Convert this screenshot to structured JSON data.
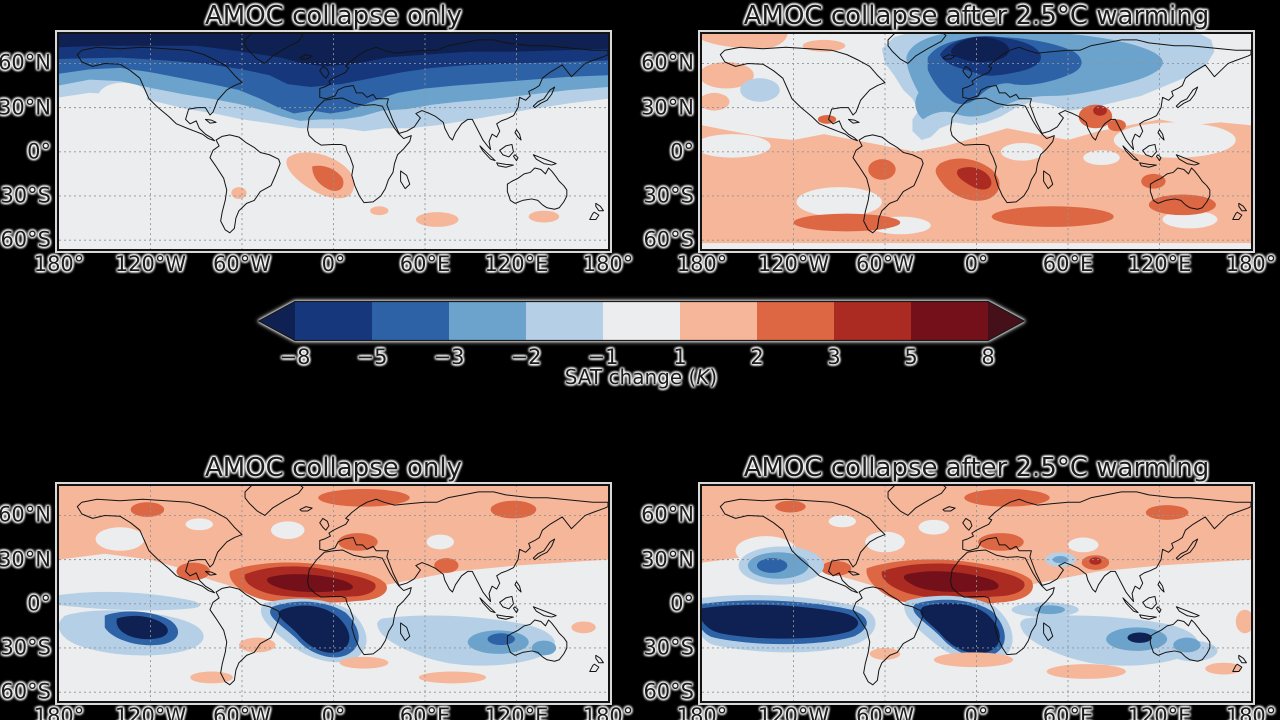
{
  "figure": {
    "background_color": "#000000",
    "text_color": "#1b1b1b",
    "panels": [
      {
        "id": "sat-collapse-only",
        "row": 0,
        "col": 0,
        "title": "AMOC collapse only"
      },
      {
        "id": "sat-collapse-after-warming",
        "row": 0,
        "col": 1,
        "title": "AMOC collapse after 2.5°C warming"
      },
      {
        "id": "lower-collapse-only",
        "row": 1,
        "col": 0,
        "title": "AMOC collapse only"
      },
      {
        "id": "lower-collapse-after-warming",
        "row": 1,
        "col": 1,
        "title": "AMOC collapse after 2.5°C warming"
      }
    ],
    "axis": {
      "x_tick_labels": [
        "180°",
        "120°W",
        "60°W",
        "0°",
        "60°E",
        "120°E",
        "180°"
      ],
      "y_tick_labels": [
        "60°N",
        "30°N",
        "0°",
        "30°S",
        "60°S"
      ]
    },
    "colorbar": {
      "label_prefix": "SAT change (",
      "label_unit": "K",
      "label_suffix": ")",
      "tick_labels": [
        "−8",
        "−5",
        "−3",
        "−2",
        "−1",
        "1",
        "2",
        "3",
        "5",
        "8"
      ],
      "under_color": "#0e2152",
      "over_color": "#451019",
      "segment_colors": [
        "#16377c",
        "#2d63a6",
        "#6ba3cd",
        "#b5d0e6",
        "#ecedee",
        "#f6b69a",
        "#dd6643",
        "#ab2b22",
        "#73101a"
      ]
    }
  },
  "chart_data": {
    "type": "heatmap",
    "subtype": "filled-contour global anomaly maps, 2x2 grid",
    "projection": "equirectangular (lon -180..180, lat ~80N..66S shown)",
    "grid": {
      "lat_lines": [
        60,
        30,
        0,
        -30,
        -60
      ],
      "lon_lines": [
        -120,
        -60,
        0,
        60,
        120
      ],
      "style": "dashed gray"
    },
    "colorbar": {
      "label": "SAT change (K)",
      "boundaries": [
        -8,
        -5,
        -3,
        -2,
        -1,
        1,
        2,
        3,
        5,
        8
      ],
      "colors": [
        "#16377c",
        "#2d63a6",
        "#6ba3cd",
        "#b5d0e6",
        "#ecedee",
        "#f6b69a",
        "#dd6643",
        "#ab2b22",
        "#73101a"
      ],
      "under_color": "#0e2152",
      "over_color": "#451019",
      "extend": "both"
    },
    "panels": [
      {
        "row": 1,
        "col": 1,
        "title": "AMOC collapse only",
        "summary": "Strong cooling (−2 to <−8 K) over the whole Northern Hemisphere, maximum over the Arctic and North Atlantic; mild 1–3 K warming in the South Atlantic off southwest Africa; elsewhere near zero."
      },
      {
        "row": 1,
        "col": 2,
        "title": "AMOC collapse after 2.5°C warming",
        "summary": "Cooling (−2 to <−8 K) confined to the North Atlantic, Nordic Seas, Europe and northern Asia; widespread 1–3 K warming across the tropics and Southern Hemisphere with 3–5 K maximum in the South Atlantic and warm spots over India."
      },
      {
        "row": 2,
        "col": 1,
        "title": "AMOC collapse only",
        "summary": "Positive anomalies (1–5) across most of the Northern Hemisphere with an intense positive band (5 to >8) along ~5–15N over the tropical Atlantic and North Africa; strong negative anomalies (<−8) in the subtropical South Atlantic and southeast tropical Pacific; moderate negatives across the southern Indian Ocean."
      },
      {
        "row": 2,
        "col": 2,
        "title": "AMOC collapse after 2.5°C warming",
        "summary": "Same dipole amplified: intense positive band over the tropical North Atlantic/Sahel; large strongly negative (<−8) band along the equatorial/southern tropical Pacific and South Atlantic; additional negative patches in the eastern North Pacific, Middle East and Indian Ocean."
      }
    ]
  }
}
